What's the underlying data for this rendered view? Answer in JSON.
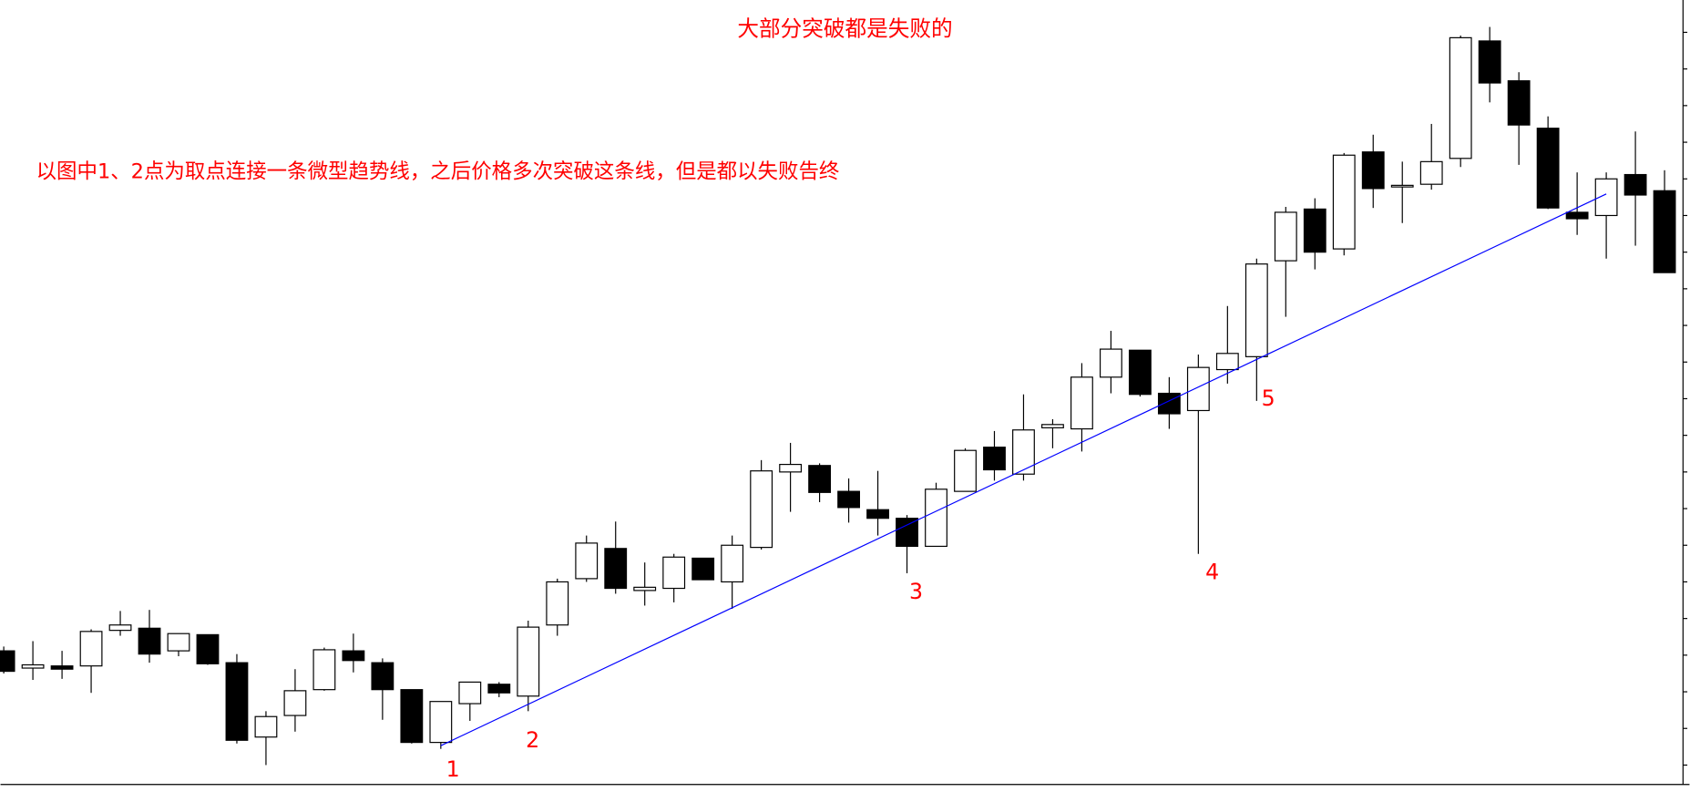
{
  "chart_data": {
    "type": "candlestick",
    "title": "大部分突破都是失败的",
    "subtitle": "以图中1、2点为取点连接一条微型趋势线，之后价格多次突破这条线，但是都以失败告终",
    "ylim": [
      0,
      735
    ],
    "bull_color": "#ffffff",
    "bear_color": "#000000",
    "trendline": {
      "color": "#0000ff",
      "start_index": 15,
      "start_value": 43,
      "end_index": 55,
      "end_value": 555
    },
    "annotations": [
      "1",
      "2",
      "3",
      "4",
      "5"
    ],
    "open": [
      131,
      115,
      117,
      117,
      150,
      152,
      131,
      146,
      120,
      51,
      71,
      95,
      131,
      120,
      95,
      46,
      82,
      100,
      89,
      155,
      198,
      226,
      187,
      189,
      217,
      195,
      227,
      297,
      303,
      279,
      262,
      254,
      228,
      279,
      320,
      295,
      338,
      337,
      385,
      410,
      370,
      354,
      392,
      404,
      493,
      541,
      504,
      594,
      563,
      564,
      588,
      697,
      660,
      616,
      538,
      535,
      573,
      558
    ],
    "high": [
      135,
      140,
      131,
      151,
      168,
      169,
      147,
      146,
      128,
      75,
      114,
      134,
      147,
      124,
      95,
      84,
      102,
      102,
      159,
      198,
      238,
      251,
      213,
      221,
      217,
      238,
      308,
      324,
      305,
      291,
      298,
      257,
      287,
      319,
      335,
      369,
      346,
      398,
      428,
      410,
      385,
      406,
      451,
      495,
      543,
      551,
      593,
      610,
      585,
      620,
      702,
      710,
      668,
      627,
      575,
      575,
      613,
      577
    ],
    "low": [
      110,
      104,
      105,
      92,
      145,
      120,
      126,
      118,
      45,
      25,
      56,
      94,
      111,
      67,
      45,
      40,
      66,
      88,
      75,
      145,
      195,
      184,
      173,
      176,
      197,
      170,
      225,
      260,
      269,
      250,
      238,
      203,
      228,
      279,
      289,
      289,
      319,
      316,
      370,
      367,
      337,
      221,
      379,
      363,
      441,
      485,
      498,
      542,
      528,
      559,
      580,
      640,
      582,
      541,
      517,
      495,
      507,
      482
    ],
    "close": [
      112,
      118,
      114,
      149,
      155,
      128,
      147,
      119,
      48,
      70,
      94,
      132,
      122,
      95,
      46,
      84,
      102,
      92,
      153,
      195,
      231,
      189,
      190,
      218,
      197,
      229,
      298,
      304,
      278,
      264,
      254,
      228,
      281,
      317,
      299,
      336,
      341,
      385,
      411,
      369,
      351,
      394,
      407,
      490,
      538,
      501,
      591,
      560,
      563,
      585,
      700,
      658,
      619,
      542,
      532,
      569,
      554,
      482
    ]
  }
}
